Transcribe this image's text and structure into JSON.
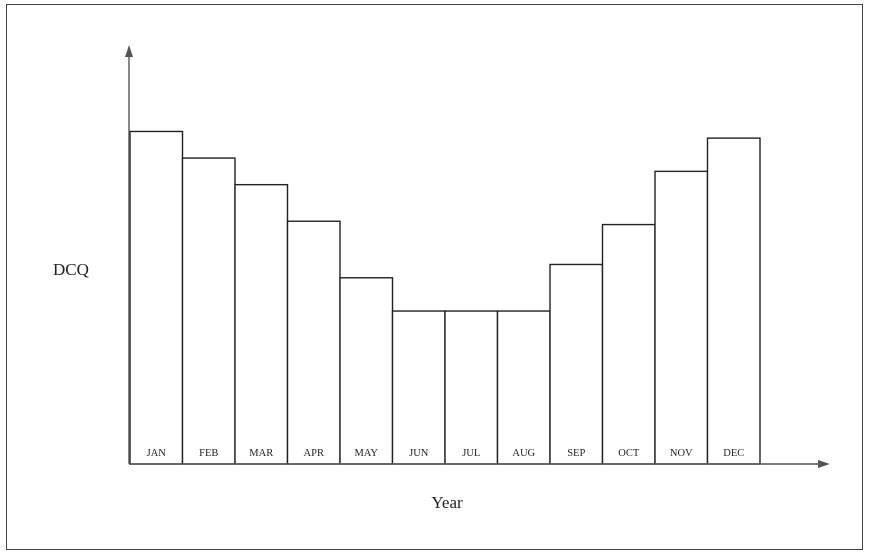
{
  "chart_data": {
    "type": "bar",
    "title": "",
    "xlabel": "Year",
    "ylabel": "DCQ",
    "categories": [
      "JAN",
      "FEB",
      "MAR",
      "APR",
      "MAY",
      "JUN",
      "JUL",
      "AUG",
      "SEP",
      "OCT",
      "NOV",
      "DEC"
    ],
    "values": [
      100,
      92,
      84,
      73,
      56,
      46,
      46,
      46,
      60,
      72,
      88,
      98
    ],
    "ylim": [
      0,
      126
    ],
    "grid": false,
    "legend": "none",
    "colors": {
      "bar_fill": "#ffffff",
      "bar_stroke": "#222222",
      "axis": "#555555"
    }
  }
}
